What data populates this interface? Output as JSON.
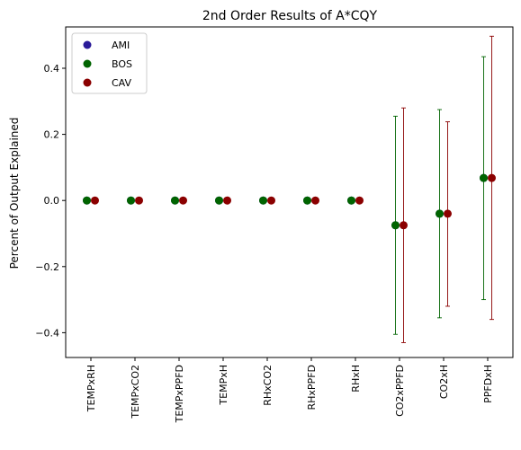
{
  "chart_data": {
    "type": "scatter",
    "title": "2nd Order Results of A*CQY",
    "ylabel": "Percent of Output Explained",
    "xlabel": "",
    "categories": [
      "TEMPxRH",
      "TEMPxCO2",
      "TEMPxPPFD",
      "TEMPxH",
      "RHxCO2",
      "RHxPPFD",
      "RHxH",
      "CO2xPPFD",
      "CO2xH",
      "PPFDxH"
    ],
    "ylim": [
      -0.475,
      0.525
    ],
    "yticks": [
      -0.4,
      -0.2,
      0.0,
      0.2,
      0.4
    ],
    "ytick_labels": [
      "−0.4",
      "−0.2",
      "0.0",
      "0.2",
      "0.4"
    ],
    "grid": false,
    "legend_position": "top-left",
    "series": [
      {
        "name": "AMI",
        "color": "#2a1a99",
        "values": [
          0.0,
          0.0,
          0.0,
          0.0,
          0.0,
          0.0,
          0.0,
          -0.075,
          -0.04,
          0.068
        ],
        "err_low": [
          0.0,
          0.0,
          0.0,
          0.0,
          0.0,
          0.0,
          0.0,
          -0.075,
          -0.04,
          0.068
        ],
        "err_high": [
          0.0,
          0.0,
          0.0,
          0.0,
          0.0,
          0.0,
          0.0,
          -0.075,
          -0.04,
          0.068
        ]
      },
      {
        "name": "BOS",
        "color": "#006400",
        "values": [
          0.0,
          0.0,
          0.0,
          0.0,
          0.0,
          0.0,
          0.0,
          -0.075,
          -0.04,
          0.068
        ],
        "err_low": [
          0.0,
          0.0,
          0.0,
          0.0,
          0.0,
          0.0,
          0.0,
          -0.405,
          -0.355,
          -0.3
        ],
        "err_high": [
          0.0,
          0.0,
          0.0,
          0.0,
          0.0,
          0.0,
          0.0,
          0.255,
          0.275,
          0.435
        ]
      },
      {
        "name": "CAV",
        "color": "#8b0000",
        "values": [
          0.0,
          0.0,
          0.0,
          0.0,
          0.0,
          0.0,
          0.0,
          -0.075,
          -0.04,
          0.068
        ],
        "err_low": [
          0.0,
          0.0,
          0.0,
          0.0,
          0.0,
          0.0,
          0.0,
          -0.43,
          -0.32,
          -0.36
        ],
        "err_high": [
          0.0,
          0.0,
          0.0,
          0.0,
          0.0,
          0.0,
          0.0,
          0.28,
          0.238,
          0.497
        ]
      }
    ]
  }
}
